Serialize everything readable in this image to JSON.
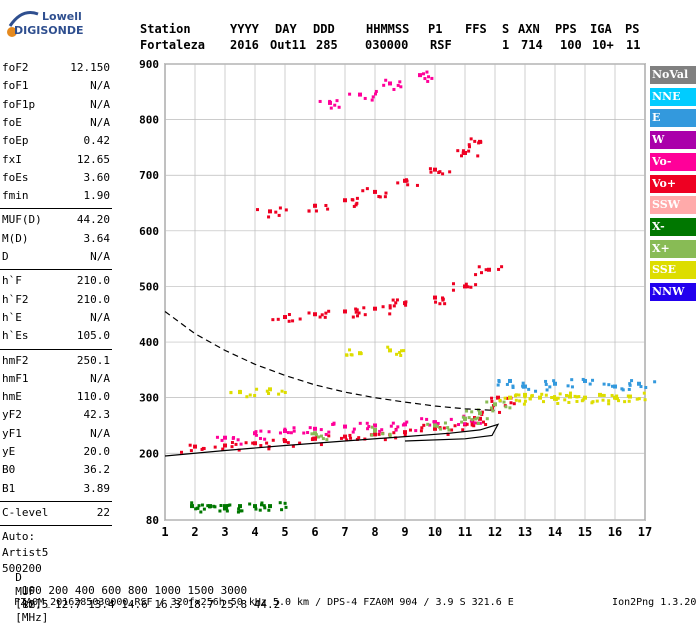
{
  "logo": {
    "top": "Lowell",
    "bottom": "DIGISONDE"
  },
  "header": {
    "labels": [
      "Station",
      "YYYY",
      "DAY",
      "DDD",
      "HHMMSS",
      "P1",
      "FFS",
      "S",
      "AXN",
      "PPS",
      "IGA",
      "PS"
    ],
    "values": [
      "Fortaleza",
      "2016",
      "Out11",
      "285",
      "030000",
      "RSF",
      "1",
      "714",
      "100",
      "10+",
      "11"
    ]
  },
  "params_group1": [
    {
      "name": "foF2",
      "value": "12.150"
    },
    {
      "name": "foF1",
      "value": "N/A"
    },
    {
      "name": "foF1p",
      "value": "N/A"
    },
    {
      "name": "foE",
      "value": "N/A"
    },
    {
      "name": "foEp",
      "value": "0.42"
    },
    {
      "name": "fxI",
      "value": "12.65"
    },
    {
      "name": "foEs",
      "value": "3.60"
    },
    {
      "name": "fmin",
      "value": "1.90"
    }
  ],
  "params_group2": [
    {
      "name": "MUF(D)",
      "value": "44.20"
    },
    {
      "name": "M(D)",
      "value": "3.64"
    },
    {
      "name": "D",
      "value": "N/A"
    }
  ],
  "params_group3": [
    {
      "name": "h`F",
      "value": "210.0"
    },
    {
      "name": "h`F2",
      "value": "210.0"
    },
    {
      "name": "h`E",
      "value": "N/A"
    },
    {
      "name": "h`Es",
      "value": "105.0"
    }
  ],
  "params_group4": [
    {
      "name": "hmF2",
      "value": "250.1"
    },
    {
      "name": "hmF1",
      "value": "N/A"
    },
    {
      "name": "hmE",
      "value": "110.0"
    },
    {
      "name": "yF2",
      "value": "42.3"
    },
    {
      "name": "yF1",
      "value": "N/A"
    },
    {
      "name": "yE",
      "value": "20.0"
    },
    {
      "name": "B0",
      "value": "36.2"
    },
    {
      "name": "B1",
      "value": "3.89"
    }
  ],
  "clevel": {
    "name": "C-level",
    "value": "22"
  },
  "auto": {
    "line1": "Auto:",
    "line2": "Artist5",
    "line3": "500200"
  },
  "footer": {
    "d_label": "D",
    "d_values": [
      "100",
      "200",
      "400",
      "600",
      "800",
      "1000",
      "1500",
      "3000"
    ],
    "d_unit": "[km]",
    "muf_label": "MUF",
    "muf_values": [
      "12.5",
      "12.7",
      "13.4",
      "14.6",
      "16.3",
      "18.7",
      "25.8",
      "44.2"
    ],
    "muf_unit": "[MHz]",
    "info": "FZA0M_2016285030000.RSF / 320fx256h 50 kHz 5.0 km / DPS-4 FZA0M 904 / 3.9 S 321.6 E",
    "version": "Ion2Png 1.3.20"
  },
  "legend": [
    {
      "label": "NoVal",
      "color": "#808080"
    },
    {
      "label": "NNE",
      "color": "#00ccff"
    },
    {
      "label": "E",
      "color": "#3399dd"
    },
    {
      "label": "W",
      "color": "#aa00aa"
    },
    {
      "label": "Vo-",
      "color": "#ff0099"
    },
    {
      "label": "Vo+",
      "color": "#ee0022"
    },
    {
      "label": "SSW",
      "color": "#ffaaaa"
    },
    {
      "label": "X-",
      "color": "#007700"
    },
    {
      "label": "X+",
      "color": "#88bb55"
    },
    {
      "label": "SSE",
      "color": "#dddd00"
    },
    {
      "label": "NNW",
      "color": "#2200ee"
    }
  ],
  "chart_data": {
    "type": "scatter",
    "title": "",
    "x_ticks": [
      1,
      2,
      3,
      4,
      5,
      6,
      7,
      8,
      9,
      10,
      11,
      12,
      13,
      14,
      15,
      16,
      17
    ],
    "y_ticks": [
      80,
      200,
      300,
      400,
      500,
      600,
      700,
      800,
      900
    ],
    "xlim": [
      1,
      17
    ],
    "ylim": [
      80,
      900
    ],
    "grid": true,
    "series": [
      {
        "name": "Vo+",
        "color": "#ee0022",
        "points": [
          [
            2.0,
            212
          ],
          [
            3.0,
            214
          ],
          [
            4.0,
            218
          ],
          [
            5.0,
            222
          ],
          [
            6.0,
            226
          ],
          [
            7.0,
            230
          ],
          [
            8.0,
            234
          ],
          [
            9.0,
            238
          ],
          [
            10.0,
            244
          ],
          [
            11.0,
            252
          ],
          [
            11.5,
            262
          ],
          [
            11.9,
            280
          ],
          [
            12.1,
            300
          ]
        ]
      },
      {
        "name": "Vo-",
        "color": "#ff0099",
        "points": [
          [
            3.0,
            228
          ],
          [
            4.0,
            236
          ],
          [
            5.0,
            240
          ],
          [
            6.0,
            244
          ],
          [
            7.0,
            248
          ],
          [
            8.0,
            250
          ],
          [
            9.0,
            252
          ],
          [
            10.0,
            256
          ],
          [
            11.0,
            262
          ]
        ]
      },
      {
        "name": "X+",
        "color": "#88bb55",
        "points": [
          [
            6.0,
            236
          ],
          [
            8.0,
            242
          ],
          [
            10.0,
            250
          ],
          [
            11.0,
            262
          ],
          [
            11.5,
            272
          ],
          [
            12.0,
            288
          ]
        ]
      },
      {
        "name": "Vo+ 2nd hop",
        "color": "#ee0022",
        "points": [
          [
            5.0,
            445
          ],
          [
            6.0,
            450
          ],
          [
            7.0,
            455
          ],
          [
            8.0,
            460
          ],
          [
            9.0,
            470
          ],
          [
            10.0,
            480
          ],
          [
            11.0,
            500
          ],
          [
            11.8,
            530
          ]
        ]
      },
      {
        "name": "Vo+ 3rd hop",
        "color": "#ee0022",
        "points": [
          [
            4.5,
            635
          ],
          [
            6.0,
            645
          ],
          [
            7.0,
            655
          ],
          [
            8.0,
            670
          ],
          [
            9.0,
            690
          ],
          [
            10.0,
            710
          ],
          [
            11.0,
            740
          ],
          [
            11.5,
            760
          ]
        ]
      },
      {
        "name": "Vo- 4th hop",
        "color": "#ff0099",
        "points": [
          [
            6.5,
            830
          ],
          [
            7.5,
            845
          ],
          [
            8.5,
            865
          ],
          [
            9.5,
            880
          ]
        ]
      },
      {
        "name": "X- Es",
        "color": "#007700",
        "points": [
          [
            1.9,
            105
          ],
          [
            2.5,
            105
          ],
          [
            3.0,
            105
          ],
          [
            3.5,
            105
          ],
          [
            4.0,
            105
          ],
          [
            4.5,
            105
          ]
        ]
      },
      {
        "name": "SSE spread",
        "color": "#dddd00",
        "points": [
          [
            12.5,
            300
          ],
          [
            13.0,
            305
          ],
          [
            13.5,
            300
          ],
          [
            14.0,
            298
          ],
          [
            14.5,
            302
          ],
          [
            15.0,
            300
          ],
          [
            15.5,
            305
          ],
          [
            16.0,
            300
          ],
          [
            16.5,
            302
          ]
        ]
      },
      {
        "name": "E spread",
        "color": "#3399dd",
        "points": [
          [
            12.5,
            330
          ],
          [
            13.0,
            320
          ],
          [
            14.0,
            325
          ],
          [
            15.0,
            330
          ],
          [
            16.0,
            320
          ],
          [
            16.8,
            325
          ]
        ]
      },
      {
        "name": "Es 2nd",
        "color": "#dddd00",
        "points": [
          [
            3.5,
            310
          ],
          [
            4.5,
            315
          ],
          [
            7.5,
            380
          ],
          [
            8.5,
            385
          ]
        ]
      }
    ],
    "curves": [
      {
        "name": "profile",
        "style": "solid",
        "points": [
          [
            1.0,
            195
          ],
          [
            3.0,
            205
          ],
          [
            5.0,
            214
          ],
          [
            7.0,
            222
          ],
          [
            9.0,
            230
          ],
          [
            10.5,
            236
          ],
          [
            11.5,
            242
          ],
          [
            12.1,
            252
          ],
          [
            11.9,
            232
          ],
          [
            11.0,
            226
          ],
          [
            9.0,
            222
          ]
        ]
      },
      {
        "name": "muf",
        "style": "dashed",
        "points": [
          [
            1.0,
            455
          ],
          [
            2.0,
            415
          ],
          [
            3.0,
            385
          ],
          [
            4.0,
            360
          ],
          [
            5.0,
            340
          ],
          [
            6.0,
            323
          ],
          [
            7.0,
            310
          ],
          [
            8.0,
            300
          ],
          [
            9.0,
            292
          ],
          [
            10.0,
            285
          ],
          [
            11.0,
            280
          ],
          [
            12.0,
            277
          ]
        ]
      }
    ]
  }
}
